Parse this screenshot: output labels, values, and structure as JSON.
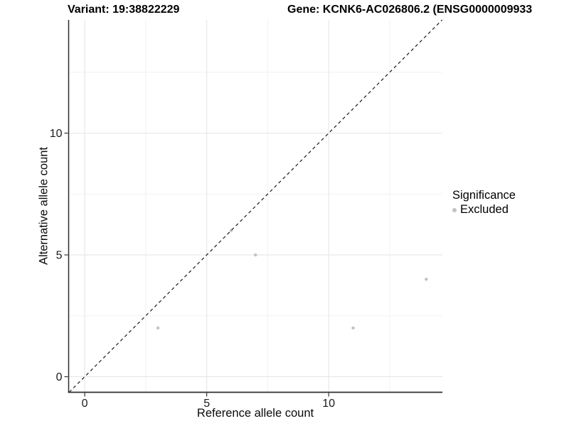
{
  "chart_data": {
    "type": "scatter",
    "title_left": "Variant: 19:38822229",
    "title_right": "Gene: KCNK6-AC026806.2 (ENSG0000009933",
    "xlabel": "Reference allele count",
    "ylabel": "Alternative allele count",
    "xlim": [
      -0.66,
      14.66
    ],
    "ylim": [
      -0.64,
      14.65
    ],
    "x_major_ticks": [
      0,
      5,
      10
    ],
    "y_major_ticks": [
      0,
      5,
      10
    ],
    "x_minor_gridlines": [
      2.5,
      7.5,
      12.5
    ],
    "y_minor_gridlines": [
      2.5,
      7.5,
      12.5
    ],
    "grid": "major+minor",
    "series": [
      {
        "name": "Excluded",
        "color": "#c2c2c2",
        "points": [
          {
            "x": 3,
            "y": 2
          },
          {
            "x": 6,
            "y": 6
          },
          {
            "x": 7,
            "y": 5
          },
          {
            "x": 11,
            "y": 2
          },
          {
            "x": 14,
            "y": 4
          }
        ]
      }
    ],
    "reference_line": {
      "type": "identity",
      "equation": "y = x",
      "style": "dashed",
      "color": "#1a1a1a"
    },
    "legend": {
      "title": "Significance",
      "position": "right",
      "items": [
        {
          "label": "Excluded",
          "color": "#c2c2c2",
          "marker": "circle"
        }
      ]
    },
    "colors": {
      "background": "#ffffff",
      "grid_major": "#e6e6e6",
      "grid_minor": "#f0f0f0",
      "axis_line": "#2e2e2e",
      "tick_mark": "#333333",
      "tick_label": "#1a1a1a",
      "point": "#c2c2c2"
    }
  }
}
